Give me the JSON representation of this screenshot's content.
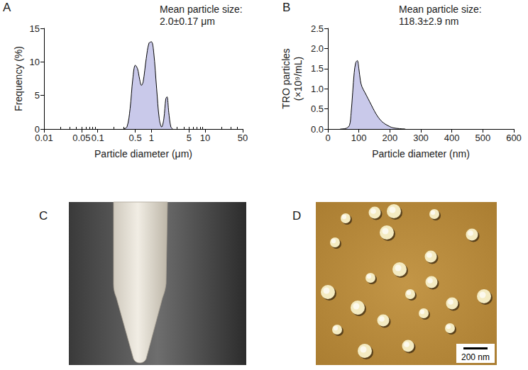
{
  "chart_data": [
    {
      "panel": "A",
      "type": "area",
      "xlabel": "Particle diameter (μm)",
      "ylabel": "Frequency (%)",
      "annotation": [
        "Mean particle size:",
        "2.0±0.17 μm"
      ],
      "x": [
        0.3,
        0.35,
        0.4,
        0.45,
        0.5,
        0.55,
        0.6,
        0.65,
        0.7,
        0.8,
        0.9,
        1.0,
        1.1,
        1.25,
        1.4,
        1.55,
        1.7,
        1.85,
        1.95,
        2.1,
        2.3,
        2.5
      ],
      "values": [
        0,
        0.3,
        3,
        7.5,
        9.5,
        9,
        7.5,
        6.5,
        7,
        10.5,
        12.8,
        13,
        11.5,
        6,
        1.5,
        0.3,
        1.5,
        4.5,
        4.8,
        2.5,
        0.3,
        0
      ],
      "color": "#c9c9ea",
      "log": "x",
      "xlim": [
        0.01,
        50
      ],
      "xticks": [
        0.01,
        0.05,
        0.1,
        0.5,
        1,
        5,
        10,
        50
      ],
      "ylim": [
        0,
        15
      ],
      "yticks": [
        0,
        5,
        10,
        15
      ],
      "grid": false
    },
    {
      "panel": "B",
      "type": "area",
      "xlabel": "Particle diameter (nm)",
      "ylabel": [
        "TRO particles",
        "(×10⁹/mL)"
      ],
      "annotation": [
        "Mean particle size:",
        "118.3±2.9 nm"
      ],
      "x": [
        40,
        60,
        70,
        75,
        80,
        85,
        90,
        95,
        100,
        105,
        110,
        120,
        130,
        140,
        150,
        160,
        170,
        180,
        190,
        200,
        210,
        230,
        250
      ],
      "values": [
        0,
        0.02,
        0.1,
        0.4,
        0.9,
        1.4,
        1.65,
        1.7,
        1.5,
        1.2,
        1.05,
        0.9,
        0.75,
        0.6,
        0.45,
        0.32,
        0.22,
        0.15,
        0.1,
        0.06,
        0.03,
        0.01,
        0
      ],
      "color": "#c9c9ea",
      "xlim": [
        0,
        600
      ],
      "xticks": [
        0,
        100,
        200,
        300,
        400,
        500,
        600
      ],
      "ylim": [
        0,
        2.5
      ],
      "yticks": [
        {
          "value": 0,
          "label": "0.0"
        },
        0.5,
        {
          "value": 1,
          "label": "1.0"
        },
        1.5,
        {
          "value": 2,
          "label": "2.0"
        },
        2.5
      ],
      "grid": false
    }
  ],
  "images": [
    {
      "panel": "C"
    },
    {
      "panel": "D",
      "scale_bar": "200 nm"
    }
  ]
}
